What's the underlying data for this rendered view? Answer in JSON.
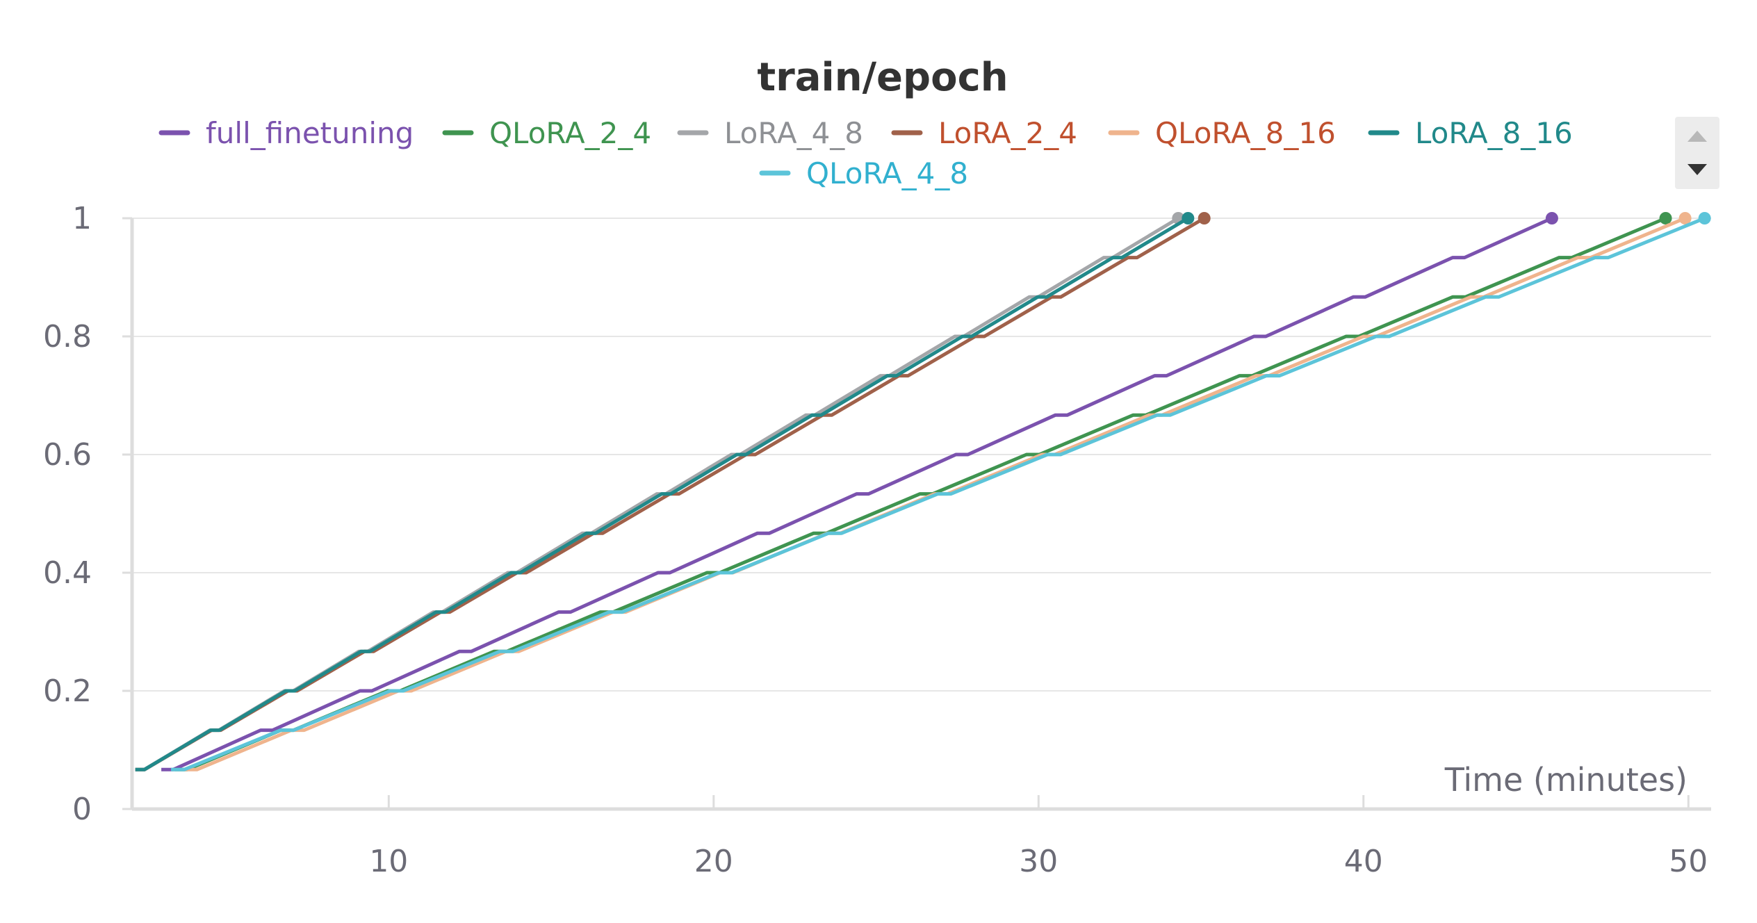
{
  "chart_data": {
    "type": "line",
    "title": "train/epoch",
    "xlabel": "Time (minutes)",
    "ylabel": "",
    "xlim": [
      2.1,
      50.7
    ],
    "ylim": [
      0,
      1
    ],
    "x_ticks": [
      10,
      20,
      30,
      40,
      50
    ],
    "y_ticks": [
      0,
      0.2,
      0.4,
      0.6,
      0.8,
      1
    ],
    "y_tick_labels": [
      "0",
      "0.2",
      "0.4",
      "0.6",
      "0.8",
      "1"
    ],
    "grid": true,
    "legend_position": "top",
    "series": [
      {
        "name": "full_finetuning",
        "color": "#7b52ae",
        "x": [
          3.0,
          45.8
        ],
        "y": [
          0.0667,
          1.0
        ]
      },
      {
        "name": "QLoRA_2_4",
        "color": "#3f9450",
        "x": [
          3.4,
          49.3
        ],
        "y": [
          0.0667,
          1.0
        ]
      },
      {
        "name": "LoRA_4_8",
        "color": "#a4a6a9",
        "x": [
          2.2,
          34.3
        ],
        "y": [
          0.0667,
          1.0
        ]
      },
      {
        "name": "LoRA_2_4",
        "color": "#a0614a",
        "x": [
          2.2,
          35.1
        ],
        "y": [
          0.0667,
          1.0
        ]
      },
      {
        "name": "QLoRA_8_16",
        "color": "#efb48d",
        "x": [
          3.7,
          49.9
        ],
        "y": [
          0.0667,
          1.0
        ]
      },
      {
        "name": "LoRA_8_16",
        "color": "#21898a",
        "x": [
          2.2,
          34.6
        ],
        "y": [
          0.0667,
          1.0
        ]
      },
      {
        "name": "QLoRA_4_8",
        "color": "#5cc4d9",
        "x": [
          3.3,
          50.5
        ],
        "y": [
          0.0667,
          1.0
        ]
      }
    ]
  },
  "legend_text_colors": [
    "#7b52ae",
    "#3f9450",
    "#8e9094",
    "#c0502e",
    "#c0502e",
    "#21898a",
    "#31b0cf"
  ],
  "scroll_up_icon": "triangle-up",
  "scroll_down_icon": "triangle-down"
}
